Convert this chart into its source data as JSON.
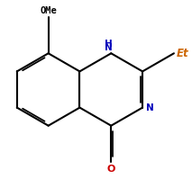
{
  "bg_color": "#ffffff",
  "bond_color": "#000000",
  "bond_width": 1.5,
  "dbo": 0.055,
  "OMe_color": "#000000",
  "Et_color": "#cc6600",
  "NH_color": "#0000bb",
  "N_color": "#0000bb",
  "O_color": "#cc0000",
  "label_OMe": "OMe",
  "label_Et": "Et",
  "label_N": "N",
  "label_O": "O",
  "s": 1.0
}
